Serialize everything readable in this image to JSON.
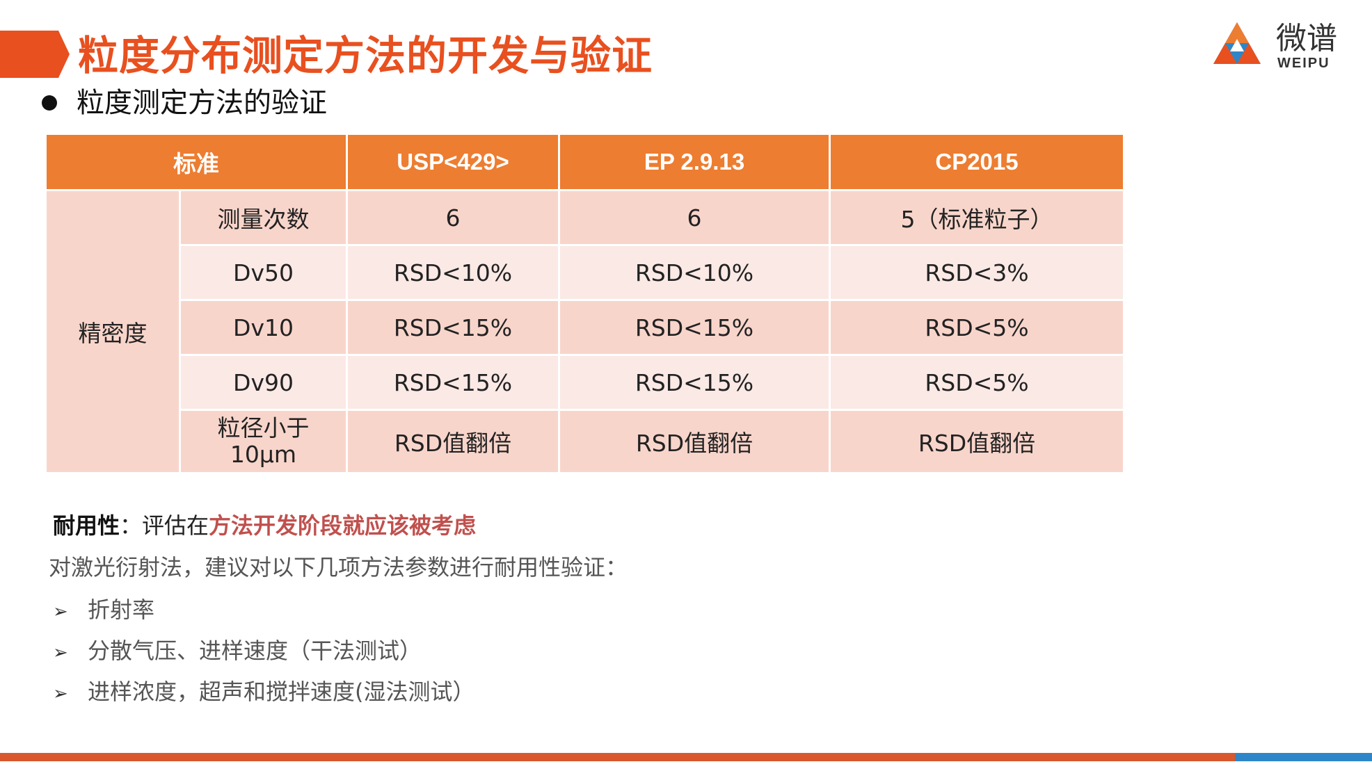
{
  "header": {
    "title": "粒度分布测定方法的开发与验证",
    "logo_cn": "微谱",
    "logo_en": "WEIPU"
  },
  "subtitle": "粒度测定方法的验证",
  "table": {
    "headers": [
      "标准",
      "USP<429>",
      "EP 2.9.13",
      "CP2015"
    ],
    "group_label": "精密度",
    "rows": [
      {
        "label": "测量次数",
        "usp": "6",
        "ep": "6",
        "cp": "5（标准粒子）"
      },
      {
        "label": "Dv50",
        "usp": "RSD<10%",
        "ep": "RSD<10%",
        "cp": "RSD<3%"
      },
      {
        "label": "Dv10",
        "usp": "RSD<15%",
        "ep": "RSD<15%",
        "cp": "RSD<5%"
      },
      {
        "label": "Dv90",
        "usp": "RSD<15%",
        "ep": "RSD<15%",
        "cp": "RSD<5%"
      },
      {
        "label_line1": "粒径小于",
        "label_line2": "10μm",
        "usp": "RSD值翻倍",
        "ep": "RSD值翻倍",
        "cp": "RSD值翻倍"
      }
    ]
  },
  "notes": {
    "robust_label": "耐用性",
    "robust_sep": "：评估在",
    "robust_emph": "方法开发阶段就应该被考虑",
    "intro": "对激光衍射法，建议对以下几项方法参数进行耐用性验证：",
    "bullet_mark": "➢",
    "items": [
      "折射率",
      "分散气压、进样速度（干法测试）",
      "进样浓度，超声和搅拌速度(湿法测试）"
    ]
  },
  "colors": {
    "accent": "#E8501F",
    "header_fill": "#ED7D31",
    "row_dark": "#F8D5CB",
    "row_light": "#FBE9E5",
    "emphasis": "#C0504D",
    "bottom_blue": "#2E86C8"
  }
}
